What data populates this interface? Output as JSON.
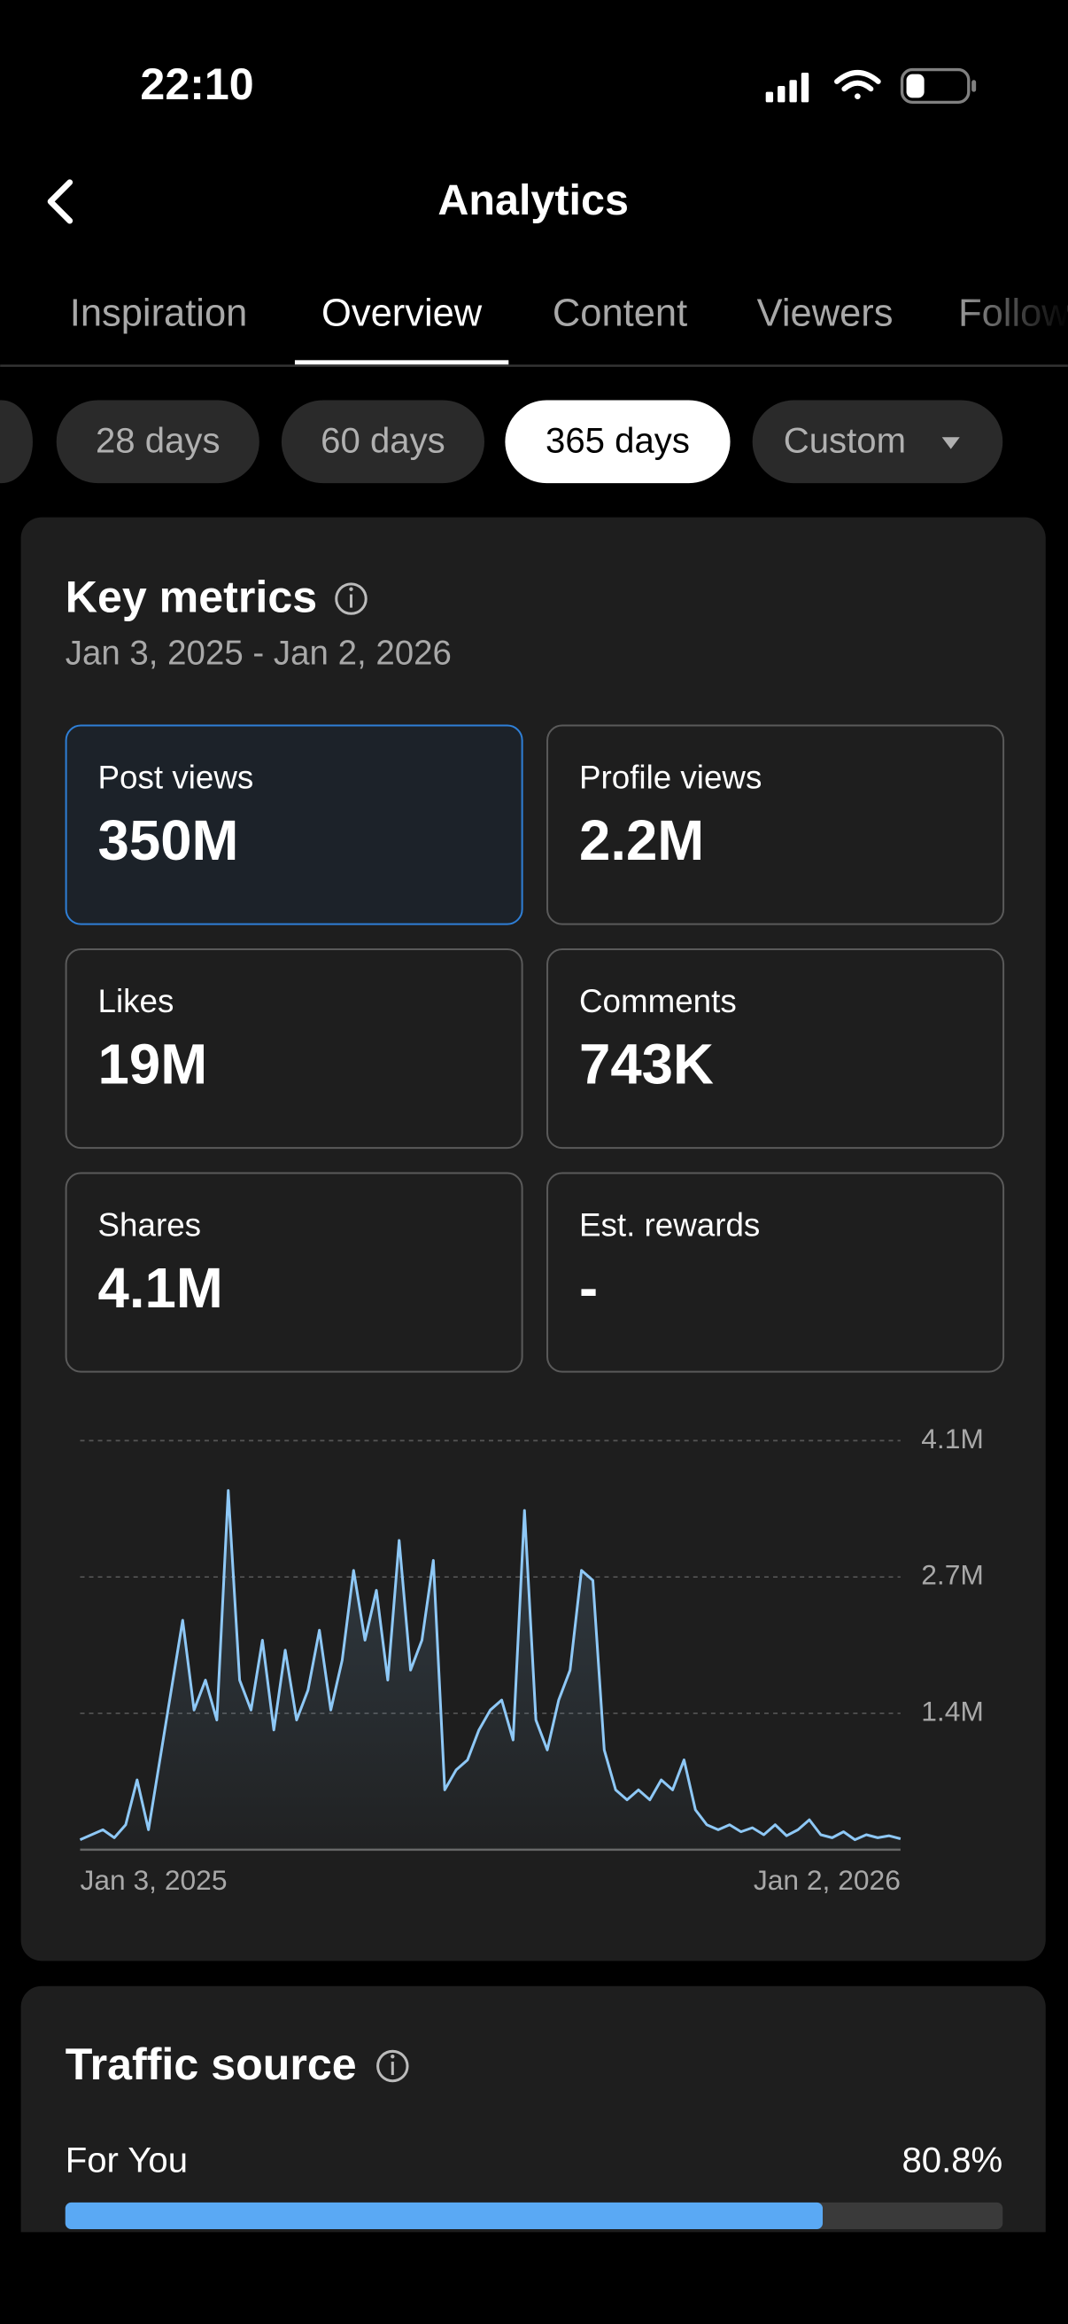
{
  "status_bar": {
    "time": "22:10"
  },
  "header": {
    "title": "Analytics"
  },
  "tabs": {
    "items": [
      "Inspiration",
      "Overview",
      "Content",
      "Viewers",
      "Followers"
    ],
    "active": 1
  },
  "periods": {
    "items": [
      "28 days",
      "60 days",
      "365 days",
      "Custom"
    ],
    "selected": 2
  },
  "key_metrics": {
    "title": "Key metrics",
    "date_range": "Jan 3, 2025 - Jan 2, 2026",
    "metrics": [
      {
        "label": "Post views",
        "value": "350M"
      },
      {
        "label": "Profile views",
        "value": "2.2M"
      },
      {
        "label": "Likes",
        "value": "19M"
      },
      {
        "label": "Comments",
        "value": "743K"
      },
      {
        "label": "Shares",
        "value": "4.1M"
      },
      {
        "label": "Est. rewards",
        "value": "-"
      }
    ],
    "selected": 0
  },
  "chart_data": {
    "type": "line",
    "color": "#8ec8f6",
    "grid": true,
    "categories": [
      "Jan 3, 2025",
      null,
      null,
      null,
      null,
      null,
      null,
      null,
      null,
      null,
      null,
      null,
      null,
      null,
      null,
      null,
      null,
      null,
      null,
      null,
      null,
      null,
      null,
      null,
      null,
      null,
      null,
      null,
      null,
      null,
      null,
      null,
      null,
      null,
      null,
      null,
      null,
      null,
      null,
      null,
      null,
      null,
      null,
      null,
      null,
      null,
      null,
      null,
      null,
      null,
      null,
      null,
      null,
      null,
      null,
      null,
      null,
      null,
      null,
      null,
      null,
      null,
      null,
      null,
      null,
      null,
      null,
      null,
      null,
      null,
      null,
      null,
      "Jan 2, 2026"
    ],
    "values": [
      100000,
      150000,
      200000,
      120000,
      250000,
      700000,
      200000,
      900000,
      1600000,
      2300000,
      1400000,
      1700000,
      1300000,
      3600000,
      1700000,
      1400000,
      2100000,
      1200000,
      2000000,
      1300000,
      1600000,
      2200000,
      1400000,
      1900000,
      2800000,
      2100000,
      2600000,
      1700000,
      3100000,
      1800000,
      2100000,
      2900000,
      600000,
      800000,
      900000,
      1200000,
      1400000,
      1500000,
      1100000,
      3400000,
      1300000,
      1000000,
      1500000,
      1800000,
      2800000,
      2700000,
      1000000,
      600000,
      500000,
      600000,
      500000,
      700000,
      600000,
      900000,
      400000,
      250000,
      200000,
      250000,
      180000,
      220000,
      150000,
      250000,
      140000,
      200000,
      300000,
      150000,
      120000,
      180000,
      100000,
      150000,
      120000,
      140000,
      110000
    ],
    "ylim": [
      0,
      4100000
    ],
    "yticks": [
      {
        "value": 1366667,
        "label": "1.4M"
      },
      {
        "value": 2733333,
        "label": "2.7M"
      },
      {
        "value": 4100000,
        "label": "4.1M"
      }
    ]
  },
  "traffic": {
    "title": "Traffic source",
    "items": [
      {
        "name": "For You",
        "value": 80.8,
        "label": "80.8%"
      }
    ]
  }
}
